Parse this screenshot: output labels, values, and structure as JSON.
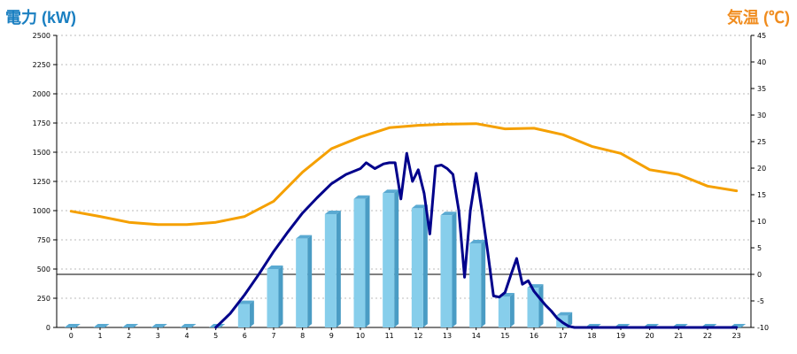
{
  "chart_data": {
    "type": "bar",
    "left_axis_title": "電力 (kW)",
    "right_axis_title": "気温 (℃)",
    "categories": [
      "0",
      "1",
      "2",
      "3",
      "4",
      "5",
      "6",
      "7",
      "8",
      "9",
      "10",
      "11",
      "12",
      "13",
      "14",
      "15",
      "16",
      "17",
      "18",
      "19",
      "20",
      "21",
      "22",
      "23"
    ],
    "left_ylim": [
      0,
      2500
    ],
    "left_ticks": [
      "0",
      "250",
      "500",
      "750",
      "1000",
      "1250",
      "1500",
      "1750",
      "2000",
      "2250",
      "2500"
    ],
    "right_ylim": [
      -10,
      45
    ],
    "right_ticks": [
      "-10",
      "-5",
      "0",
      "5",
      "10",
      "15",
      "20",
      "25",
      "30",
      "35",
      "40",
      "45"
    ],
    "grid": true,
    "series": [
      {
        "kind": "bar",
        "axis": "left",
        "color": "#87ceeb",
        "values": [
          0,
          0,
          0,
          0,
          0,
          0,
          200,
          500,
          760,
          970,
          1100,
          1150,
          1020,
          960,
          720,
          265,
          340,
          100,
          0,
          0,
          0,
          0,
          0,
          0
        ]
      },
      {
        "kind": "line",
        "axis": "left",
        "color": "#f5a000",
        "x": [
          0,
          1,
          2,
          3,
          4,
          5,
          6,
          7,
          8,
          9,
          10,
          11,
          12,
          13,
          14,
          15,
          16,
          17,
          18,
          19,
          20,
          21,
          22,
          23
        ],
        "values": [
          995,
          950,
          900,
          880,
          880,
          900,
          950,
          1080,
          1330,
          1530,
          1630,
          1710,
          1730,
          1740,
          1745,
          1700,
          1705,
          1650,
          1550,
          1490,
          1350,
          1310,
          1210,
          1170
        ]
      },
      {
        "kind": "line",
        "axis": "left",
        "color": "#00008b",
        "x": [
          5,
          5.5,
          6,
          6.5,
          7,
          7.5,
          8,
          8.5,
          9,
          9.5,
          10,
          10.2,
          10.5,
          10.8,
          11,
          11.2,
          11.4,
          11.6,
          11.8,
          12,
          12.2,
          12.4,
          12.6,
          12.8,
          13,
          13.2,
          13.4,
          13.6,
          13.8,
          14,
          14.2,
          14.4,
          14.6,
          14.8,
          15,
          15.2,
          15.4,
          15.6,
          15.8,
          16,
          16.2,
          16.4,
          16.6,
          16.8,
          17,
          17.2,
          17.4,
          17.6,
          17.8,
          18,
          19,
          20,
          21,
          22,
          23
        ],
        "values": [
          0,
          120,
          280,
          460,
          650,
          820,
          980,
          1110,
          1230,
          1310,
          1360,
          1410,
          1360,
          1400,
          1410,
          1410,
          1100,
          1490,
          1250,
          1350,
          1150,
          800,
          1380,
          1390,
          1360,
          1310,
          1000,
          430,
          1000,
          1320,
          1000,
          650,
          270,
          260,
          300,
          450,
          590,
          370,
          400,
          310,
          250,
          190,
          140,
          80,
          40,
          10,
          0,
          0,
          0,
          0,
          0,
          0,
          0,
          0,
          0
        ]
      }
    ],
    "annotations": [
      {
        "type": "hline",
        "axis": "right",
        "value": 0,
        "color": "#000000"
      }
    ]
  }
}
